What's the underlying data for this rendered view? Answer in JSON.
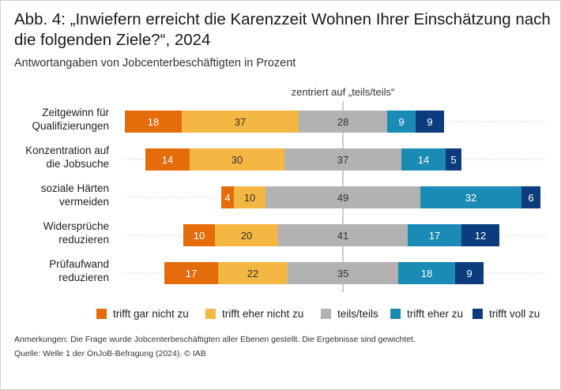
{
  "title": "Abb. 4: „Inwiefern erreicht die Karenzzeit Wohnen Ihrer Einschätzung nach die folgenden Ziele?“, 2024",
  "subtitle": "Antwortangaben von Jobcenterbeschäftigten in Prozent",
  "colors": {
    "trifft_gar_nicht_zu": "#e46c0a",
    "trifft_eher_nicht_zu": "#f5b744",
    "teils_teils": "#b2b2b2",
    "trifft_eher_zu": "#1a8bb5",
    "trifft_voll_zu": "#0b3d7e"
  },
  "chart_data": {
    "type": "bar",
    "orientation": "horizontal",
    "stacked": true,
    "layout": "diverging",
    "center_label": "zentriert auf „teils/teils“",
    "categories": [
      [
        "Zeitgewinn für",
        "Qualifizierungen"
      ],
      [
        "Konzentration auf",
        "die Jobsuche"
      ],
      [
        "soziale Härten",
        "vermeiden"
      ],
      [
        "Widersprüche",
        "reduzieren"
      ],
      [
        "Prüfaufwand",
        "reduzieren"
      ]
    ],
    "series": [
      {
        "name": "trifft gar nicht zu",
        "color_key": "trifft_gar_nicht_zu",
        "values": [
          18,
          14,
          4,
          10,
          17
        ]
      },
      {
        "name": "trifft eher nicht zu",
        "color_key": "trifft_eher_nicht_zu",
        "values": [
          37,
          30,
          10,
          20,
          22
        ]
      },
      {
        "name": "teils/teils",
        "color_key": "teils_teils",
        "values": [
          28,
          37,
          49,
          41,
          35
        ]
      },
      {
        "name": "trifft eher zu",
        "color_key": "trifft_eher_zu",
        "values": [
          9,
          14,
          32,
          17,
          18
        ]
      },
      {
        "name": "trifft voll zu",
        "color_key": "trifft_voll_zu",
        "values": [
          9,
          5,
          6,
          12,
          9
        ]
      }
    ],
    "xlabel": "",
    "ylabel": "",
    "unit": "Prozent"
  },
  "legend": [
    {
      "label": "trifft gar nicht zu",
      "color_key": "trifft_gar_nicht_zu"
    },
    {
      "label": "trifft eher nicht zu",
      "color_key": "trifft_eher_nicht_zu"
    },
    {
      "label": "teils/teils",
      "color_key": "teils_teils"
    },
    {
      "label": "trifft eher zu",
      "color_key": "trifft_eher_zu"
    },
    {
      "label": "trifft voll zu",
      "color_key": "trifft_voll_zu"
    }
  ],
  "notes": {
    "anmerkungen": "Anmerkungen: Die Frage wurde Jobcenterbeschäftigten aller Ebenen gestellt. Die Ergebnisse sind gewichtet.",
    "quelle": "Quelle: Welle 1 der OnJoB-Befragung (2024). © IAB"
  }
}
